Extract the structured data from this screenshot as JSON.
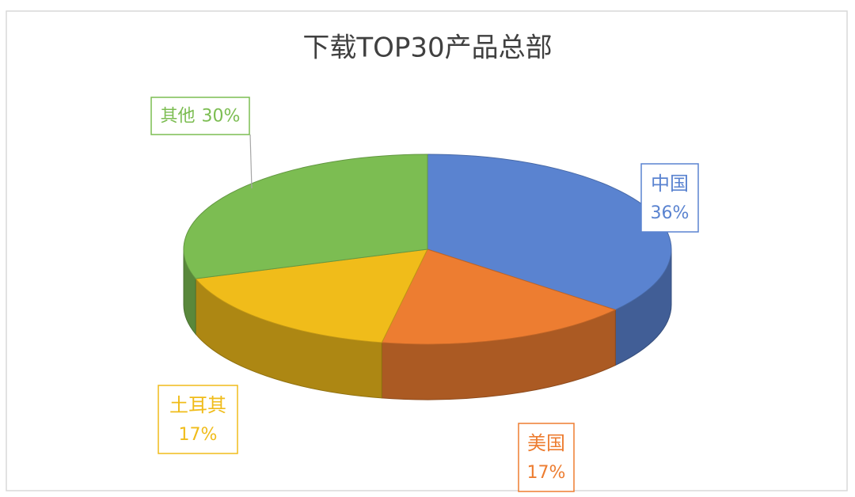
{
  "chart_data": {
    "type": "pie3d",
    "title": "下载TOP30产品总部",
    "categories": [
      "中国",
      "美国",
      "土耳其",
      "其他"
    ],
    "values": [
      36,
      17,
      17,
      30
    ],
    "value_labels": [
      "36%",
      "17%",
      "17%",
      "30%"
    ],
    "colors": [
      "#5a83d0",
      "#ed7d31",
      "#f0bc1a",
      "#7cbd52"
    ]
  }
}
